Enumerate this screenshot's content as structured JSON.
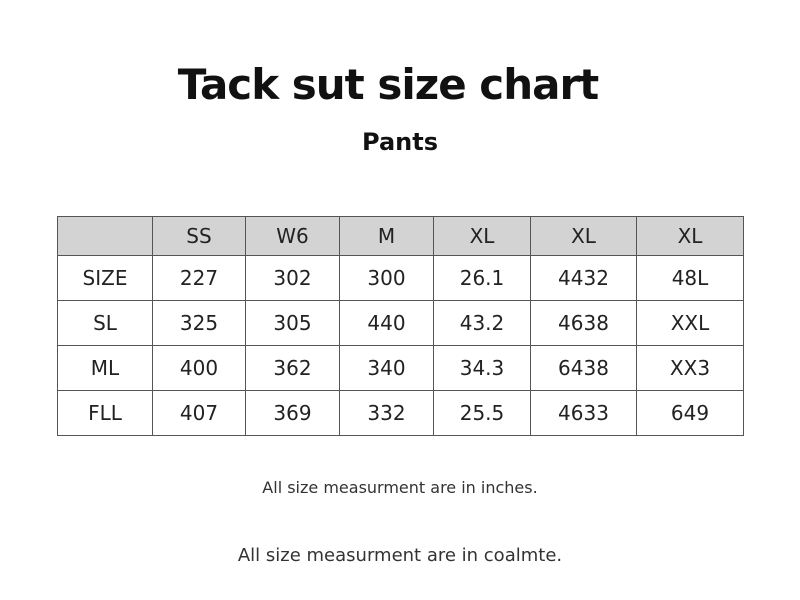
{
  "title": "Tack sut size chart",
  "subtitle": "Pants",
  "table": {
    "headers": [
      "",
      "SS",
      "W6",
      "M",
      "XL",
      "XL",
      "XL"
    ],
    "rows": [
      [
        "SIZE",
        "227",
        "302",
        "300",
        "26.1",
        "4432",
        "48L"
      ],
      [
        "SL",
        "325",
        "305",
        "440",
        "43.2",
        "4638",
        "XXL"
      ],
      [
        "ML",
        "400",
        "362",
        "340",
        "34.3",
        "6438",
        "XX3"
      ],
      [
        "FLL",
        "407",
        "369",
        "332",
        "25.5",
        "4633",
        "649"
      ]
    ]
  },
  "notes": [
    "All size measurment are in inches.",
    "All size measurment are in coalmte."
  ],
  "colors": {
    "header_bg": "#d3d3d3",
    "border": "#555555",
    "text": "#111111"
  }
}
